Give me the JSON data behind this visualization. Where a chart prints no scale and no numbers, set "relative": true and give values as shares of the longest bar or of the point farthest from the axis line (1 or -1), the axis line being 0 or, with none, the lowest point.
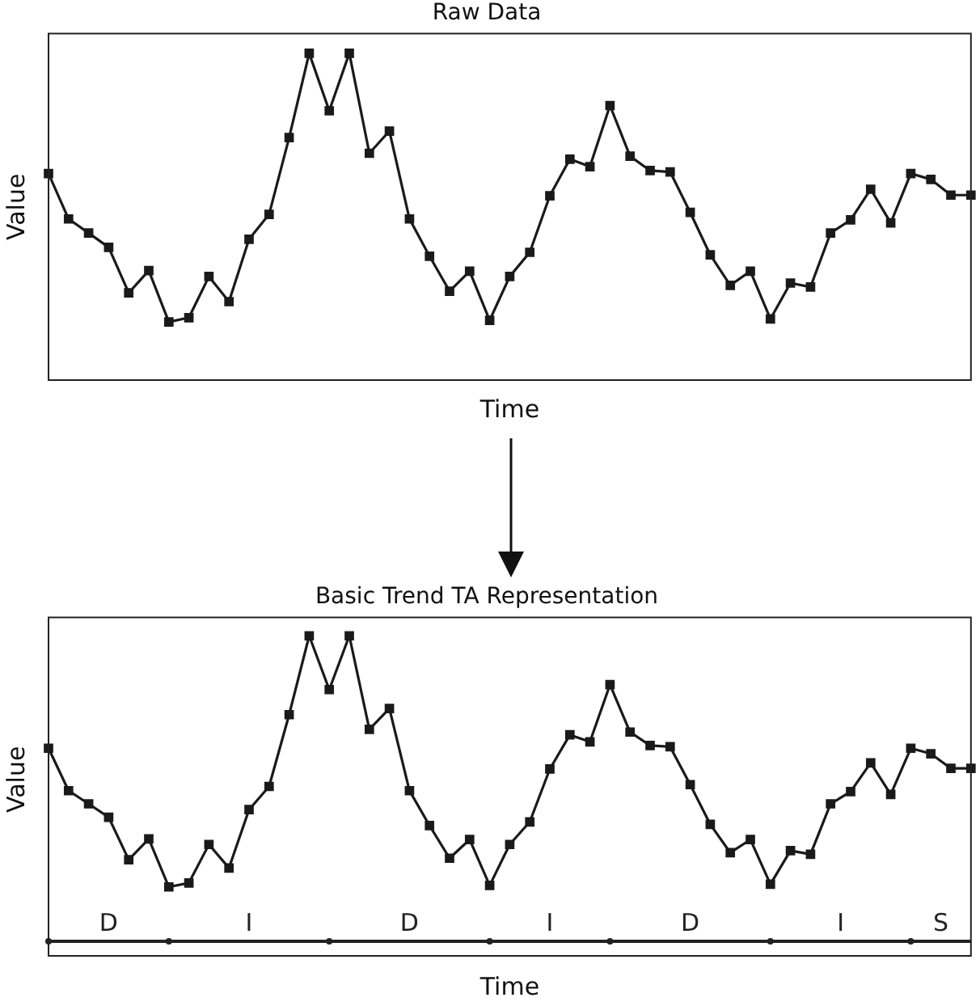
{
  "chart_data": [
    {
      "type": "line",
      "title": "Raw Data",
      "xlabel": "Time",
      "ylabel": "Value",
      "relative": true,
      "marker": "square",
      "color": "#1a1a1a",
      "categories": [
        null,
        null,
        null,
        null,
        null,
        null,
        null,
        null,
        null,
        null,
        null,
        null,
        null,
        null,
        null,
        null,
        null,
        null,
        null,
        null,
        null,
        null,
        null,
        null,
        null,
        null,
        null,
        null,
        null,
        null,
        null,
        null,
        null,
        null,
        null,
        null,
        null,
        null,
        null,
        null,
        null,
        null,
        null,
        null,
        null,
        null,
        null
      ],
      "values": [
        0.632,
        0.493,
        0.45,
        0.406,
        0.267,
        0.335,
        0.178,
        0.191,
        0.317,
        0.24,
        0.431,
        0.507,
        0.742,
        1,
        0.824,
        1,
        0.694,
        0.762,
        0.493,
        0.379,
        0.272,
        0.333,
        0.183,
        0.317,
        0.391,
        0.564,
        0.676,
        0.653,
        0.84,
        0.685,
        0.641,
        0.637,
        0.513,
        0.383,
        0.29,
        0.333,
        0.187,
        0.297,
        0.285,
        0.45,
        0.49,
        0.584,
        0.481,
        0.632,
        0.614,
        0.566,
        0.566
      ]
    },
    {
      "type": "line",
      "title": "Basic Trend TA Representation",
      "xlabel": "Time",
      "ylabel": "Value",
      "relative": true,
      "categories": [
        null,
        null,
        null,
        null,
        null,
        null,
        null,
        null,
        null,
        null,
        null,
        null,
        null,
        null,
        null,
        null,
        null,
        null,
        null,
        null,
        null,
        null,
        null,
        null,
        null,
        null,
        null,
        null,
        null,
        null,
        null,
        null,
        null,
        null,
        null,
        null,
        null,
        null,
        null,
        null,
        null,
        null,
        null,
        null,
        null,
        null,
        null
      ],
      "series": [
        {
          "marker": "square",
          "color": "#1a1a1a",
          "values": [
            0.632,
            0.493,
            0.45,
            0.406,
            0.267,
            0.335,
            0.178,
            0.191,
            0.317,
            0.24,
            0.431,
            0.507,
            0.742,
            1,
            0.824,
            1,
            0.694,
            0.762,
            0.493,
            0.379,
            0.272,
            0.333,
            0.183,
            0.317,
            0.391,
            0.564,
            0.676,
            0.653,
            0.84,
            0.685,
            0.641,
            0.637,
            0.513,
            0.383,
            0.29,
            0.333,
            0.187,
            0.297,
            0.285,
            0.45,
            0.49,
            0.584,
            0.481,
            0.632,
            0.614,
            0.566,
            0.566
          ]
        },
        {
          "type": "scatter",
          "marker": "circle",
          "color": "#222222",
          "values": [
            0,
            null,
            null,
            null,
            null,
            null,
            0,
            null,
            null,
            null,
            null,
            null,
            null,
            null,
            0,
            null,
            null,
            null,
            null,
            null,
            null,
            null,
            0,
            null,
            null,
            null,
            null,
            null,
            0,
            null,
            null,
            null,
            null,
            null,
            null,
            null,
            0,
            null,
            null,
            null,
            null,
            null,
            null,
            0,
            null,
            null,
            null
          ]
        }
      ],
      "annotations": [
        "D",
        "I",
        "D",
        "I",
        "D",
        "I",
        "S"
      ]
    }
  ]
}
